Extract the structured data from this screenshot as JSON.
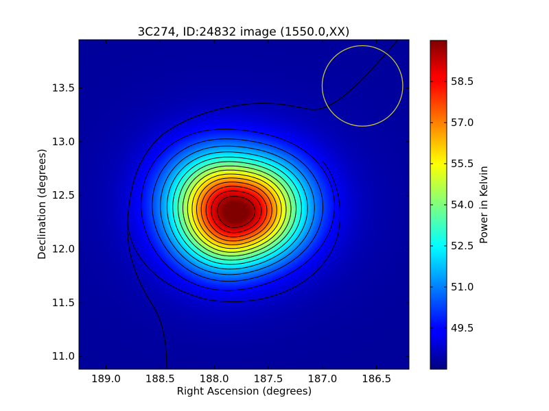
{
  "chart_data": {
    "type": "heatmap",
    "title": "3C274, ID:24832 image (1550.0,XX)",
    "xlabel": "Right Ascension (degrees)",
    "ylabel": "Declination (degrees)",
    "xlim": [
      189.25,
      186.2
    ],
    "ylim": [
      10.88,
      13.95
    ],
    "x_inverted": true,
    "x_ticks": [
      189.0,
      188.5,
      188.0,
      187.5,
      187.0,
      186.5
    ],
    "x_tick_labels": [
      "189.0",
      "188.5",
      "188.0",
      "187.5",
      "187.0",
      "186.5"
    ],
    "y_ticks": [
      11.0,
      11.5,
      12.0,
      12.5,
      13.0,
      13.5
    ],
    "y_tick_labels": [
      "11.0",
      "11.5",
      "12.0",
      "12.5",
      "13.0",
      "13.5"
    ],
    "colorbar": {
      "label": "Power in Kelvin",
      "range": [
        48.0,
        60.0
      ],
      "ticks": [
        49.5,
        51.0,
        52.5,
        54.0,
        55.5,
        57.0,
        58.5
      ],
      "tick_labels": [
        "49.5",
        "51.0",
        "52.5",
        "54.0",
        "55.5",
        "57.0",
        "58.5"
      ],
      "colormap": "jet"
    },
    "source": {
      "ra": 187.8,
      "dec": 12.34,
      "peak_kelvin": 59.8,
      "background_kelvin": 48.3
    },
    "beam_circle": {
      "ra": 186.63,
      "dec": 13.52,
      "radius_deg": 0.375,
      "color": "#c8c832"
    },
    "contour_color": "#000000"
  }
}
